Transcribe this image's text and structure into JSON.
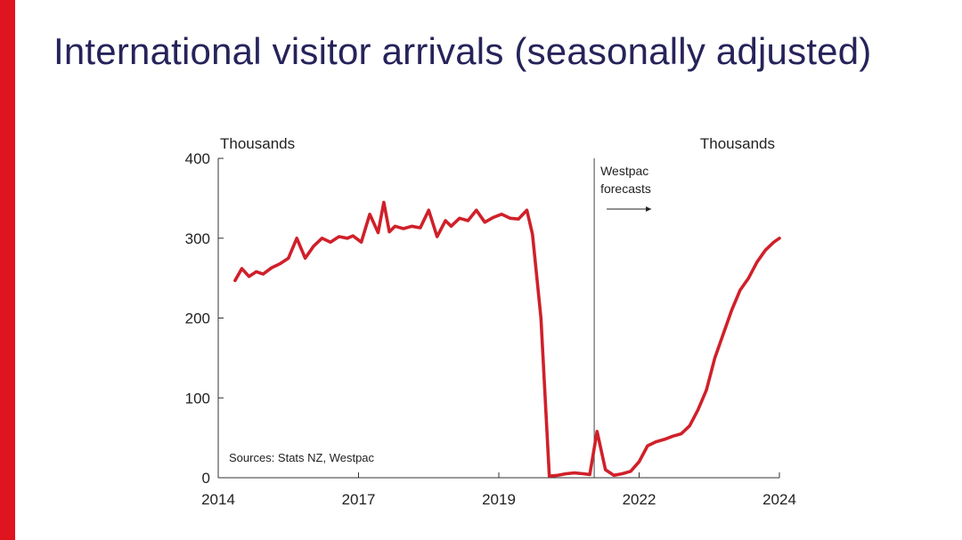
{
  "slide": {
    "title": "International visitor arrivals (seasonally adjusted)",
    "accent_color": "#e0141e",
    "title_color": "#26235a"
  },
  "chart_data": {
    "type": "line",
    "ylabel_left": "Thousands",
    "ylabel_right": "Thousands",
    "ylim": [
      0,
      400
    ],
    "yticks": [
      0,
      100,
      200,
      300,
      400
    ],
    "xticks": [
      "2014",
      "2017",
      "2019",
      "2022",
      "2024"
    ],
    "xtick_positions": [
      2014.0,
      2016.5,
      2019.0,
      2021.5,
      2024.0
    ],
    "xlim": [
      2014.0,
      2024.0
    ],
    "grid": false,
    "line_color": "#d0202a",
    "forecast": {
      "x": 2020.7,
      "label_line1": "Westpac",
      "label_line2": "forecasts"
    },
    "source": "Sources: Stats NZ, Westpac",
    "series": [
      {
        "x": [
          2014.3,
          2014.42,
          2014.55,
          2014.68,
          2014.8,
          2014.95,
          2015.1,
          2015.25,
          2015.4,
          2015.55,
          2015.7,
          2015.85,
          2016.0,
          2016.15,
          2016.3,
          2016.4,
          2016.55,
          2016.7,
          2016.85,
          2016.95,
          2017.05,
          2017.15,
          2017.3,
          2017.45,
          2017.6,
          2017.75,
          2017.9,
          2018.05,
          2018.15,
          2018.3,
          2018.45,
          2018.6,
          2018.75,
          2018.9,
          2019.05,
          2019.2,
          2019.35,
          2019.5,
          2019.6,
          2019.75,
          2019.9,
          2020.05,
          2020.2,
          2020.35,
          2020.5,
          2020.62,
          2020.75,
          2020.9,
          2021.05,
          2021.2,
          2021.35,
          2021.5,
          2021.65,
          2021.8,
          2021.95,
          2022.1,
          2022.25,
          2022.4,
          2022.55,
          2022.7,
          2022.85,
          2023.0,
          2023.15,
          2023.3,
          2023.45,
          2023.6,
          2023.75,
          2023.9,
          2024.0
        ],
        "values": [
          247,
          262,
          252,
          258,
          255,
          263,
          268,
          275,
          300,
          275,
          290,
          300,
          295,
          302,
          300,
          303,
          295,
          330,
          307,
          345,
          308,
          315,
          312,
          315,
          313,
          335,
          302,
          322,
          315,
          325,
          322,
          335,
          320,
          326,
          330,
          325,
          324,
          335,
          305,
          200,
          2,
          3,
          5,
          6,
          5,
          4,
          58,
          10,
          3,
          5,
          8,
          20,
          40,
          45,
          48,
          52,
          55,
          65,
          85,
          110,
          150,
          180,
          210,
          235,
          250,
          270,
          285,
          295,
          300
        ]
      }
    ]
  }
}
